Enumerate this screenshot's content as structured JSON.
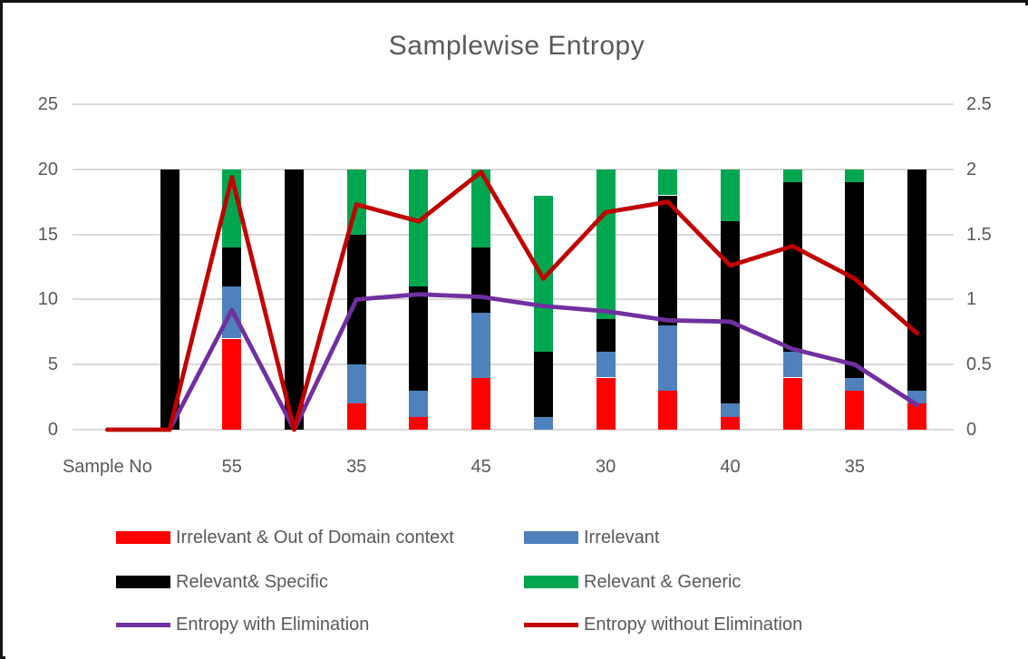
{
  "title": "Samplewise Entropy",
  "legend": {
    "items": [
      {
        "label": "Irrelevant & Out of Domain context",
        "color": "#FF0000",
        "marker": "swatch"
      },
      {
        "label": "Irrelevant",
        "color": "#4F81BD",
        "marker": "swatch"
      },
      {
        "label": "Relevant& Specific",
        "color": "#000000",
        "marker": "swatch"
      },
      {
        "label": "Relevant & Generic",
        "color": "#00A650",
        "marker": "swatch"
      },
      {
        "label": "Entropy with Elimination",
        "color": "#7030A0",
        "marker": "line"
      },
      {
        "label": "Entropy without Elimination",
        "color": "#C00000",
        "marker": "line"
      }
    ]
  },
  "colors": {
    "irrelevant_out_of_domain": "#FF0000",
    "irrelevant": "#4F81BD",
    "relevant_specific": "#000000",
    "relevant_generic": "#00A650",
    "entropy_with_elimination": "#7030A0",
    "entropy_without_elimination": "#C00000",
    "axis_text": "#595959",
    "gridline": "#d9d9d9"
  },
  "chart_data": {
    "type": "combo: stacked-bar + line (dual axis)",
    "title": "Samplewise Entropy",
    "categories": [
      "Sample No",
      "",
      "55",
      "",
      "35",
      "",
      "45",
      "",
      "30",
      "",
      "40",
      "",
      "35",
      ""
    ],
    "x_tick_label_indices": [
      0,
      2,
      4,
      6,
      8,
      10,
      12
    ],
    "bar_series": [
      {
        "name": "Irrelevant & Out of Domain context",
        "color": "#FF0000",
        "axis": "left",
        "values": [
          0,
          0,
          7,
          0,
          2,
          1,
          4,
          0,
          4,
          3,
          1,
          4,
          3,
          2
        ]
      },
      {
        "name": "Irrelevant",
        "color": "#4F81BD",
        "axis": "left",
        "values": [
          0,
          0,
          4,
          0,
          3,
          2,
          5,
          1,
          2,
          5,
          1,
          2,
          1,
          1
        ]
      },
      {
        "name": "Relevant& Specific",
        "color": "#000000",
        "axis": "left",
        "values": [
          0,
          20,
          3,
          20,
          10,
          8,
          5,
          5,
          2.5,
          10,
          14,
          13,
          15,
          17
        ]
      },
      {
        "name": "Relevant & Generic",
        "color": "#00A650",
        "axis": "left",
        "values": [
          0,
          0,
          6,
          0,
          5,
          9,
          6,
          12,
          11.5,
          2,
          4,
          1,
          1,
          0
        ]
      }
    ],
    "line_series": [
      {
        "name": "Entropy with Elimination",
        "color": "#7030A0",
        "axis": "right",
        "values": [
          null,
          0,
          0.92,
          0,
          1.0,
          1.04,
          1.02,
          0.95,
          0.91,
          0.84,
          0.83,
          0.62,
          0.5,
          0.19
        ]
      },
      {
        "name": "Entropy without Elimination",
        "color": "#C00000",
        "axis": "right",
        "values": [
          0,
          0,
          1.94,
          0,
          1.73,
          1.6,
          1.98,
          1.16,
          1.67,
          1.75,
          1.26,
          1.41,
          1.16,
          0.74
        ]
      }
    ],
    "left_axis": {
      "min": 0,
      "max": 25,
      "ticks": [
        0,
        5,
        10,
        15,
        20,
        25
      ]
    },
    "right_axis": {
      "min": 0,
      "max": 2.5,
      "ticks": [
        0,
        0.5,
        1,
        1.5,
        2,
        2.5
      ]
    },
    "gridlines": true,
    "legend_position": "bottom"
  }
}
